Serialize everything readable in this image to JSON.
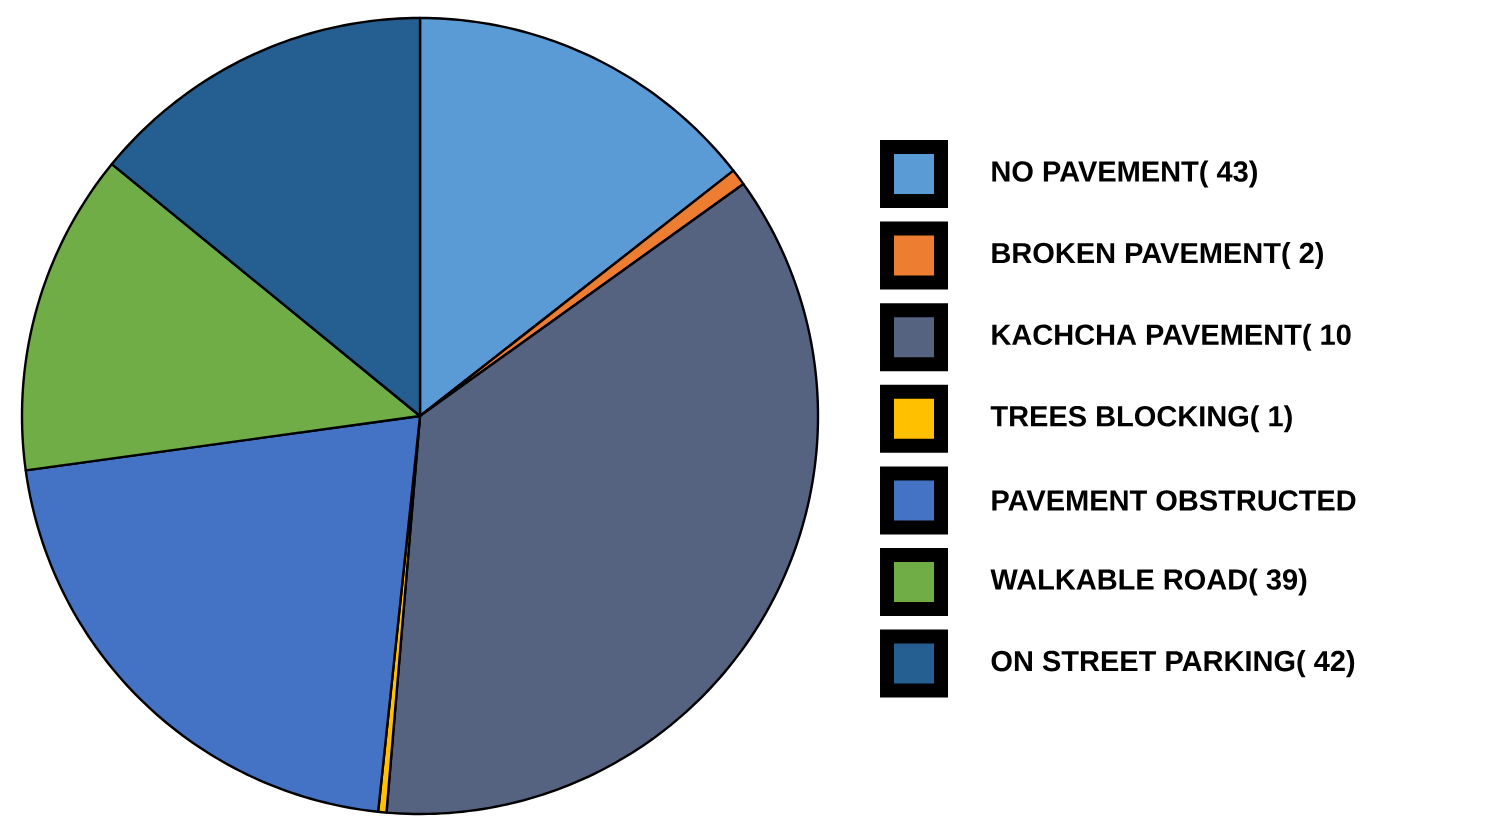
{
  "chart_data": {
    "type": "pie",
    "categories": [
      "NO PAVEMENT( 43)",
      "BROKEN PAVEMENT( 2)",
      "KACHCHA PAVEMENT( 10",
      "TREES BLOCKING( 1)",
      "PAVEMENT OBSTRUCTED",
      "WALKABLE ROAD( 39)",
      "ON STREET PARKING( 42)"
    ],
    "values": [
      43,
      2,
      108,
      1,
      63,
      39,
      42
    ],
    "colors": [
      "#5b9bd5",
      "#ed7d31",
      "#556280",
      "#ffc000",
      "#4472c4",
      "#70ad47",
      "#255e91"
    ],
    "legend": "right"
  }
}
